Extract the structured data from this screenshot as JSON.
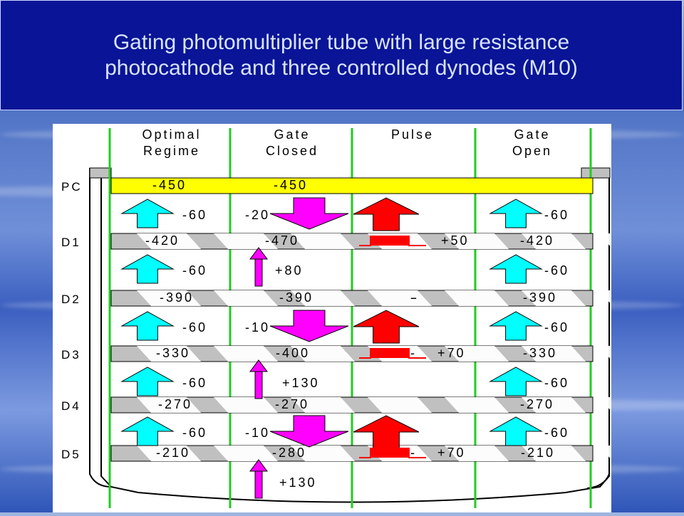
{
  "title": {
    "line1": "Gating photomultiplier tube with large resistance",
    "line2": "photocathode and three controlled dynodes (M10)"
  },
  "columns": [
    {
      "line1": "Optimal",
      "line2": "Regime"
    },
    {
      "line1": "Gate",
      "line2": "Closed"
    },
    {
      "line1": "Pulse",
      "line2": ""
    },
    {
      "line1": "Gate",
      "line2": "Open"
    }
  ],
  "electrodes": [
    {
      "label": "PC",
      "values": [
        "-450",
        "-450",
        "",
        ""
      ]
    },
    {
      "label": "D1",
      "values": [
        "-420",
        "-470",
        "+50",
        "-420"
      ]
    },
    {
      "label": "D2",
      "values": [
        "-390",
        "-390",
        "-",
        "-390"
      ]
    },
    {
      "label": "D3",
      "values": [
        "-330",
        "-400",
        "+70",
        "-330"
      ]
    },
    {
      "label": "D4",
      "values": [
        "-270",
        "-270",
        "",
        "-270"
      ]
    },
    {
      "label": "D5",
      "values": [
        "-210",
        "-280",
        "+70",
        "-210"
      ]
    }
  ],
  "gaps": [
    {
      "values": [
        "-60",
        "-20",
        "",
        "-60"
      ]
    },
    {
      "values": [
        "-60",
        "+80",
        "",
        "-60"
      ]
    },
    {
      "values": [
        "-60",
        "-10",
        "",
        "-60"
      ]
    },
    {
      "values": [
        "-60",
        "+130",
        "",
        "-60"
      ]
    },
    {
      "values": [
        "-60",
        "-10",
        "",
        "-60"
      ]
    },
    {
      "values": [
        "",
        "+130",
        "",
        ""
      ]
    }
  ],
  "pulse_dashes": [
    "-",
    "-",
    "-"
  ],
  "colors": {
    "photocathode": "#ffff00",
    "dynode": "#c0c0c0",
    "separator": "#22cc22",
    "arrow_optimal": "#00ffff",
    "arrow_gate": "#ff00ff",
    "arrow_pulse": "#ff0000"
  }
}
